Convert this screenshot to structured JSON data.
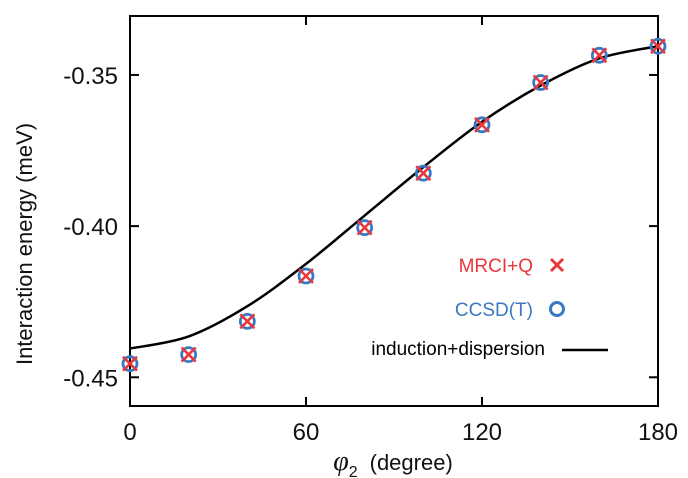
{
  "chart_data": {
    "type": "scatter",
    "xlabel_symbol": "φ",
    "xlabel_sub": "2",
    "xlabel_unit": "(degree)",
    "ylabel": "Interaction energy  (meV)",
    "xlim": [
      0,
      180
    ],
    "ylim": [
      -0.4595,
      -0.3305
    ],
    "xticks": [
      0,
      60,
      120,
      180
    ],
    "xtick_labels": [
      "0",
      "60",
      "120",
      "180"
    ],
    "yticks": [
      -0.35,
      -0.4,
      -0.45
    ],
    "ytick_labels": [
      "-0.35",
      "-0.40",
      "-0.45"
    ],
    "grid": false,
    "legend_position": "right",
    "series": [
      {
        "name": "MRCI+Q",
        "marker": "x",
        "color": "#e8383d",
        "x": [
          0,
          20,
          40,
          60,
          80,
          100,
          120,
          140,
          160,
          180
        ],
        "y": [
          -0.4455,
          -0.4425,
          -0.4315,
          -0.4165,
          -0.4005,
          -0.3825,
          -0.3665,
          -0.3525,
          -0.3435,
          -0.3405
        ]
      },
      {
        "name": "CCSD(T)",
        "marker": "o",
        "color": "#3b78c2",
        "x": [
          0,
          20,
          40,
          60,
          80,
          100,
          120,
          140,
          160,
          180
        ],
        "y": [
          -0.4455,
          -0.4425,
          -0.4315,
          -0.4165,
          -0.4005,
          -0.3825,
          -0.3665,
          -0.3525,
          -0.3435,
          -0.3405
        ]
      },
      {
        "name": "induction+dispersion",
        "marker": "line",
        "color": "#000000",
        "x": [
          0,
          20,
          40,
          60,
          80,
          100,
          120,
          140,
          160,
          180
        ],
        "y": [
          -0.4405,
          -0.4365,
          -0.4265,
          -0.4125,
          -0.3965,
          -0.3805,
          -0.3655,
          -0.3535,
          -0.3445,
          -0.3405
        ]
      }
    ]
  }
}
